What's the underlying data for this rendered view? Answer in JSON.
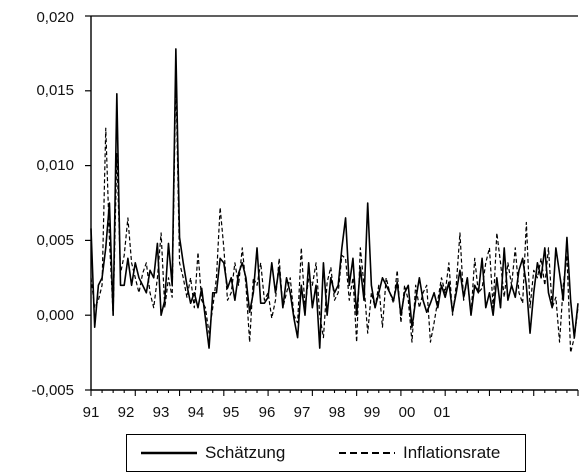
{
  "chart_data": {
    "type": "line",
    "title": "",
    "xlabel": "",
    "ylabel": "",
    "xlim": [
      91,
      102
    ],
    "ylim": [
      -0.005,
      0.02
    ],
    "x_tick_labels": [
      "91",
      "92",
      "93",
      "94",
      "95",
      "96",
      "97",
      "98",
      "99",
      "00",
      "01"
    ],
    "y_tick_values": [
      -0.005,
      0.0,
      0.005,
      0.01,
      0.015,
      0.02
    ],
    "y_tick_labels": [
      "-0,005",
      "0,000",
      "0,005",
      "0,010",
      "0,015",
      "0,020"
    ],
    "grid": false,
    "legend_position": "bottom",
    "x_start": 91,
    "x_step_months": 1,
    "series": [
      {
        "name": "Schätzung",
        "style": "solid",
        "color": "#000000",
        "values": [
          0.0058,
          -0.0008,
          0.002,
          0.0025,
          0.0045,
          0.0075,
          0.0,
          0.0148,
          0.002,
          0.002,
          0.0038,
          0.002,
          0.0035,
          0.0025,
          0.002,
          0.0015,
          0.003,
          0.0025,
          0.0048,
          0.0,
          0.001,
          0.0048,
          0.002,
          0.0178,
          0.0052,
          0.0035,
          0.002,
          0.0008,
          0.0015,
          0.0005,
          0.0018,
          -0.0002,
          -0.0022,
          0.0015,
          0.0015,
          0.0038,
          0.0035,
          0.0018,
          0.0025,
          0.001,
          0.0028,
          0.0035,
          0.0025,
          0.0002,
          0.0015,
          0.0045,
          0.0008,
          0.0008,
          0.0012,
          0.0035,
          0.0015,
          0.0032,
          0.0005,
          0.0025,
          0.0015,
          -0.0002,
          -0.0015,
          0.002,
          0.0,
          0.0035,
          0.0005,
          0.002,
          -0.0022,
          0.0035,
          0.0,
          0.0025,
          0.0015,
          0.002,
          0.0045,
          0.0065,
          0.002,
          0.0038,
          0.0,
          0.0032,
          0.001,
          0.0075,
          0.002,
          0.0005,
          0.0015,
          0.0025,
          0.002,
          0.0015,
          0.001,
          0.0022,
          0.0,
          0.0015,
          0.002,
          -0.0008,
          0.001,
          0.0025,
          0.001,
          0.0002,
          0.0008,
          0.0015,
          0.0005,
          0.002,
          0.0012,
          0.0022,
          0.0002,
          0.0015,
          0.003,
          0.0012,
          0.0025,
          0.0,
          0.002,
          0.0015,
          0.0038,
          0.0005,
          0.0015,
          0.0,
          0.0025,
          0.0005,
          0.0045,
          0.001,
          0.002,
          0.0012,
          0.003,
          0.0038,
          0.002,
          -0.0012,
          0.0015,
          0.0035,
          0.0025,
          0.0045,
          0.0015,
          0.0005,
          0.0045,
          0.0028,
          0.001,
          0.0052,
          0.001,
          -0.0015,
          0.0008
        ]
      },
      {
        "name": "Inflationsrate",
        "style": "dashed",
        "color": "#000000",
        "values": [
          0.0025,
          0.0005,
          0.001,
          0.002,
          0.0125,
          0.005,
          0.0,
          0.0108,
          0.0028,
          0.004,
          0.0065,
          0.0035,
          0.0025,
          0.0015,
          0.0028,
          0.0035,
          0.0015,
          0.0005,
          0.0025,
          0.0055,
          0.0005,
          0.0025,
          0.0012,
          0.016,
          0.0035,
          0.0025,
          0.0012,
          0.0025,
          0.0005,
          0.0042,
          0.001,
          0.0005,
          -0.0012,
          0.0005,
          0.0025,
          0.0072,
          0.0045,
          0.001,
          0.0015,
          0.0035,
          0.002,
          0.0045,
          0.002,
          -0.0018,
          0.0025,
          0.002,
          0.0035,
          0.001,
          0.0015,
          -0.0002,
          0.001,
          0.0038,
          0.0005,
          0.0015,
          0.0025,
          0.0,
          -0.0005,
          0.0045,
          0.0005,
          0.0025,
          0.002,
          0.0035,
          0.0,
          -0.0015,
          0.0022,
          0.0032,
          0.001,
          0.0015,
          0.004,
          0.0038,
          0.001,
          0.0025,
          -0.0018,
          0.0045,
          0.002,
          -0.0012,
          0.0015,
          0.0005,
          0.002,
          -0.0008,
          0.0025,
          0.0015,
          0.0008,
          0.003,
          -0.0005,
          0.002,
          0.001,
          -0.0018,
          0.002,
          0.0005,
          0.0015,
          0.002,
          -0.0018,
          -0.0005,
          0.001,
          0.0025,
          0.0015,
          0.0035,
          0.0,
          0.002,
          0.0055,
          0.001,
          0.0025,
          0.0,
          0.0038,
          0.0015,
          0.0018,
          0.0035,
          0.0045,
          0.0005,
          0.0055,
          0.0035,
          0.0012,
          0.0035,
          0.002,
          0.0045,
          0.0015,
          0.0008,
          0.0062,
          0.0005,
          0.003,
          0.0025,
          0.0038,
          0.002,
          0.0045,
          0.0005,
          0.0012,
          -0.0018,
          0.002,
          0.004,
          -0.0025,
          -0.0015,
          0.0005
        ]
      }
    ]
  }
}
